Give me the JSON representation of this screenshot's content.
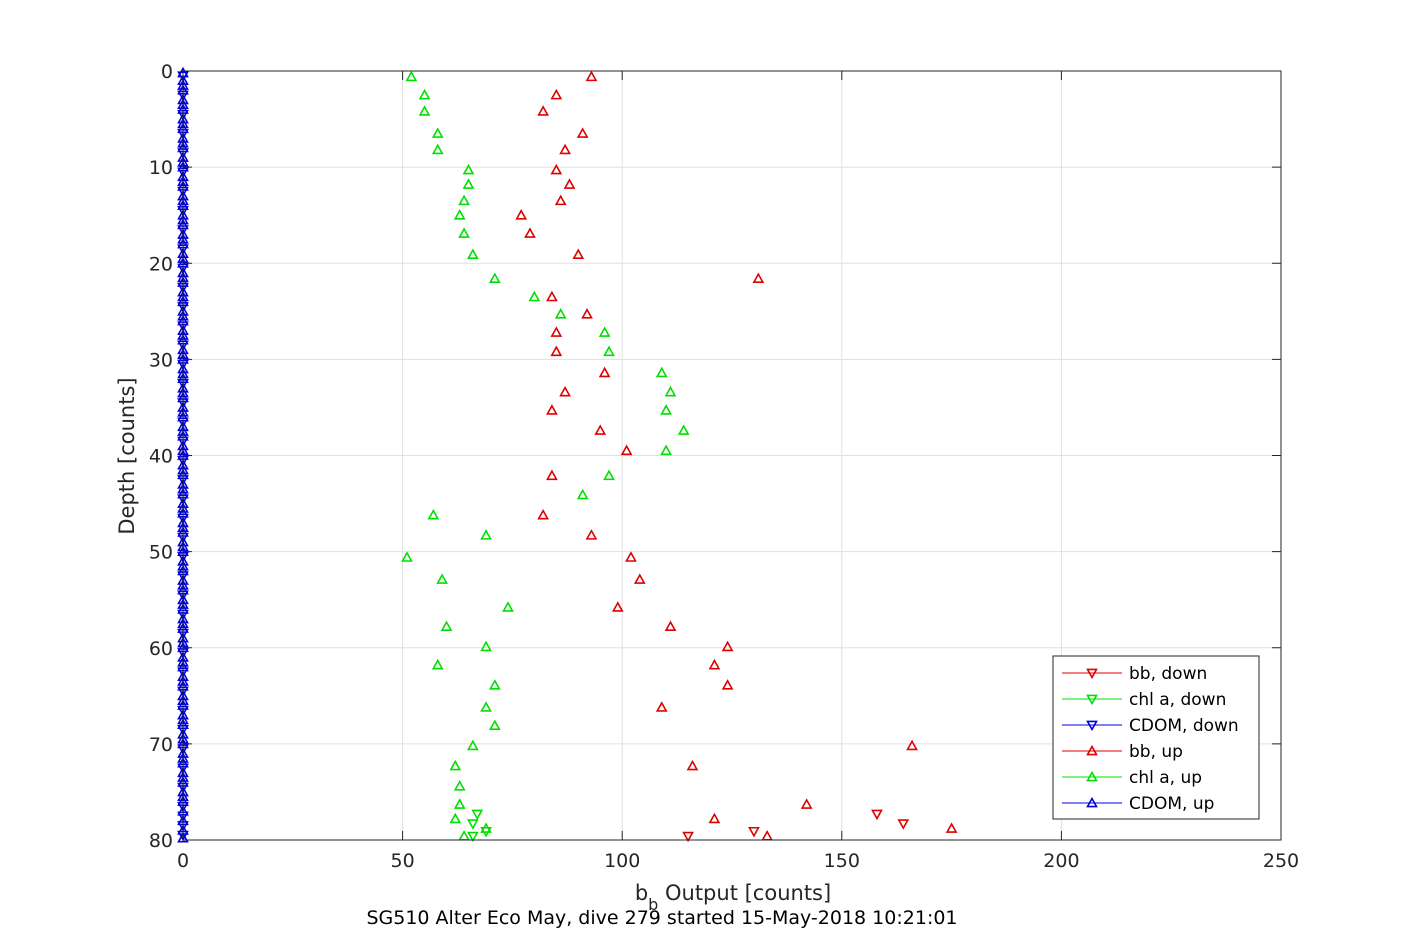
{
  "chart_data": {
    "type": "scatter",
    "title": "",
    "caption": "SG510 Alter Eco May, dive 279 started 15-May-2018 10:21:01",
    "xlabel": {
      "main": "b",
      "sub": "b",
      "rest": " Output [counts]"
    },
    "ylabel": "Depth [counts]",
    "xlim": [
      0,
      250
    ],
    "ylim": [
      0,
      80
    ],
    "y_reversed": true,
    "grid": true,
    "x_ticks": [
      0,
      50,
      100,
      150,
      200,
      250
    ],
    "y_ticks": [
      0,
      10,
      20,
      30,
      40,
      50,
      60,
      70,
      80
    ],
    "legend_position": "bottom-right",
    "series": [
      {
        "name": "bb, down",
        "color": "#e00000",
        "marker": "triangle-down",
        "points": [
          [
            158,
            77.3
          ],
          [
            164,
            78.3
          ],
          [
            130,
            79.1
          ],
          [
            115,
            79.6
          ]
        ]
      },
      {
        "name": "chl a, down",
        "color": "#00e000",
        "marker": "triangle-down",
        "points": [
          [
            67,
            77.3
          ],
          [
            66,
            78.3
          ],
          [
            69,
            79.1
          ],
          [
            66,
            79.6
          ]
        ]
      },
      {
        "name": "CDOM, down",
        "color": "#0000e0",
        "marker": "triangle-down",
        "points": [
          [
            0,
            0.5
          ],
          [
            0,
            2.5
          ],
          [
            0,
            4.5
          ],
          [
            0,
            6.5
          ],
          [
            0,
            8.5
          ],
          [
            0,
            10.5
          ],
          [
            0,
            12.5
          ],
          [
            0,
            14.5
          ],
          [
            0,
            16.5
          ],
          [
            0,
            18.5
          ],
          [
            0,
            20.5
          ],
          [
            0,
            22.5
          ],
          [
            0,
            24.5
          ],
          [
            0,
            26.5
          ],
          [
            0,
            28.5
          ],
          [
            0,
            30.5
          ],
          [
            0,
            32.5
          ],
          [
            0,
            34.5
          ],
          [
            0,
            36.5
          ],
          [
            0,
            38.5
          ],
          [
            0,
            40.5
          ],
          [
            0,
            42.5
          ],
          [
            0,
            44.5
          ],
          [
            0,
            46.5
          ],
          [
            0,
            48.5
          ],
          [
            0,
            50.5
          ],
          [
            0,
            52.5
          ],
          [
            0,
            54.5
          ],
          [
            0,
            56.5
          ],
          [
            0,
            58.5
          ],
          [
            0,
            60.5
          ],
          [
            0,
            62.5
          ],
          [
            0,
            64.5
          ],
          [
            0,
            66.5
          ],
          [
            0,
            68.5
          ],
          [
            0,
            70.5
          ],
          [
            0,
            72.5
          ],
          [
            0,
            74.5
          ],
          [
            0,
            76.5
          ],
          [
            0,
            77.5
          ],
          [
            0,
            78.5
          ],
          [
            0,
            79.5
          ]
        ]
      },
      {
        "name": "bb, up",
        "color": "#e00000",
        "marker": "triangle-up",
        "points": [
          [
            93,
            0.6
          ],
          [
            85,
            2.5
          ],
          [
            82,
            4.2
          ],
          [
            91,
            6.5
          ],
          [
            87,
            8.2
          ],
          [
            85,
            10.3
          ],
          [
            88,
            11.8
          ],
          [
            86,
            13.5
          ],
          [
            77,
            15.0
          ],
          [
            79,
            16.9
          ],
          [
            90,
            19.1
          ],
          [
            131,
            21.6
          ],
          [
            84,
            23.5
          ],
          [
            92,
            25.3
          ],
          [
            85,
            27.2
          ],
          [
            85,
            29.2
          ],
          [
            96,
            31.4
          ],
          [
            87,
            33.4
          ],
          [
            84,
            35.3
          ],
          [
            95,
            37.4
          ],
          [
            101,
            39.5
          ],
          [
            84,
            42.1
          ],
          [
            82,
            46.2
          ],
          [
            93,
            48.3
          ],
          [
            102,
            50.6
          ],
          [
            104,
            52.9
          ],
          [
            99,
            55.8
          ],
          [
            111,
            57.8
          ],
          [
            124,
            59.9
          ],
          [
            121,
            61.8
          ],
          [
            124,
            63.9
          ],
          [
            109,
            66.2
          ],
          [
            166,
            70.2
          ],
          [
            116,
            72.3
          ],
          [
            142,
            76.3
          ],
          [
            121,
            77.8
          ],
          [
            175,
            78.8
          ],
          [
            133,
            79.6
          ]
        ]
      },
      {
        "name": "chl a, up",
        "color": "#00e000",
        "marker": "triangle-up",
        "points": [
          [
            52,
            0.6
          ],
          [
            55,
            2.5
          ],
          [
            55,
            4.2
          ],
          [
            58,
            6.5
          ],
          [
            58,
            8.2
          ],
          [
            65,
            10.3
          ],
          [
            65,
            11.8
          ],
          [
            64,
            13.5
          ],
          [
            63,
            15.0
          ],
          [
            64,
            16.9
          ],
          [
            66,
            19.1
          ],
          [
            71,
            21.6
          ],
          [
            80,
            23.5
          ],
          [
            86,
            25.3
          ],
          [
            96,
            27.2
          ],
          [
            97,
            29.2
          ],
          [
            109,
            31.4
          ],
          [
            111,
            33.4
          ],
          [
            110,
            35.3
          ],
          [
            114,
            37.4
          ],
          [
            110,
            39.5
          ],
          [
            97,
            42.1
          ],
          [
            91,
            44.1
          ],
          [
            57,
            46.2
          ],
          [
            69,
            48.3
          ],
          [
            51,
            50.6
          ],
          [
            59,
            52.9
          ],
          [
            74,
            55.8
          ],
          [
            60,
            57.8
          ],
          [
            69,
            59.9
          ],
          [
            58,
            61.8
          ],
          [
            71,
            63.9
          ],
          [
            69,
            66.2
          ],
          [
            71,
            68.1
          ],
          [
            66,
            70.2
          ],
          [
            62,
            72.3
          ],
          [
            63,
            74.4
          ],
          [
            63,
            76.3
          ],
          [
            62,
            77.8
          ],
          [
            69,
            78.8
          ],
          [
            64,
            79.6
          ]
        ]
      },
      {
        "name": "CDOM, up",
        "color": "#0000e0",
        "marker": "triangle-up",
        "points": [
          [
            0,
            0.2
          ],
          [
            0,
            1.0
          ],
          [
            0,
            1.5
          ],
          [
            0,
            2.0
          ],
          [
            0,
            3.0
          ],
          [
            0,
            3.5
          ],
          [
            0,
            4.0
          ],
          [
            0,
            5.0
          ],
          [
            0,
            5.5
          ],
          [
            0,
            6.0
          ],
          [
            0,
            7.0
          ],
          [
            0,
            7.5
          ],
          [
            0,
            8.0
          ],
          [
            0,
            9.0
          ],
          [
            0,
            9.5
          ],
          [
            0,
            10.0
          ],
          [
            0,
            11.0
          ],
          [
            0,
            11.5
          ],
          [
            0,
            12.0
          ],
          [
            0,
            13.0
          ],
          [
            0,
            13.5
          ],
          [
            0,
            14.0
          ],
          [
            0,
            15.0
          ],
          [
            0,
            15.5
          ],
          [
            0,
            16.0
          ],
          [
            0,
            17.0
          ],
          [
            0,
            17.5
          ],
          [
            0,
            18.0
          ],
          [
            0,
            19.0
          ],
          [
            0,
            19.5
          ],
          [
            0,
            20.0
          ],
          [
            0,
            21.0
          ],
          [
            0,
            21.5
          ],
          [
            0,
            22.0
          ],
          [
            0,
            23.0
          ],
          [
            0,
            23.5
          ],
          [
            0,
            24.0
          ],
          [
            0,
            25.0
          ],
          [
            0,
            25.5
          ],
          [
            0,
            26.0
          ],
          [
            0,
            27.0
          ],
          [
            0,
            27.5
          ],
          [
            0,
            28.0
          ],
          [
            0,
            29.0
          ],
          [
            0,
            29.5
          ],
          [
            0,
            30.0
          ],
          [
            0,
            31.0
          ],
          [
            0,
            31.5
          ],
          [
            0,
            32.0
          ],
          [
            0,
            33.0
          ],
          [
            0,
            33.5
          ],
          [
            0,
            34.0
          ],
          [
            0,
            35.0
          ],
          [
            0,
            35.5
          ],
          [
            0,
            36.0
          ],
          [
            0,
            37.0
          ],
          [
            0,
            37.5
          ],
          [
            0,
            38.0
          ],
          [
            0,
            39.0
          ],
          [
            0,
            39.5
          ],
          [
            0,
            40.0
          ],
          [
            0,
            41.0
          ],
          [
            0,
            41.5
          ],
          [
            0,
            42.0
          ],
          [
            0,
            43.0
          ],
          [
            0,
            43.5
          ],
          [
            0,
            44.0
          ],
          [
            0,
            45.0
          ],
          [
            0,
            45.5
          ],
          [
            0,
            46.0
          ],
          [
            0,
            47.0
          ],
          [
            0,
            47.5
          ],
          [
            0,
            48.0
          ],
          [
            0,
            49.0
          ],
          [
            0,
            49.5
          ],
          [
            0,
            50.0
          ],
          [
            0,
            51.0
          ],
          [
            0,
            51.5
          ],
          [
            0,
            52.0
          ],
          [
            0,
            53.0
          ],
          [
            0,
            53.5
          ],
          [
            0,
            54.0
          ],
          [
            0,
            55.0
          ],
          [
            0,
            55.5
          ],
          [
            0,
            56.0
          ],
          [
            0,
            57.0
          ],
          [
            0,
            57.5
          ],
          [
            0,
            58.0
          ],
          [
            0,
            59.0
          ],
          [
            0,
            59.5
          ],
          [
            0,
            60.0
          ],
          [
            0,
            61.0
          ],
          [
            0,
            61.5
          ],
          [
            0,
            62.0
          ],
          [
            0,
            63.0
          ],
          [
            0,
            63.5
          ],
          [
            0,
            64.0
          ],
          [
            0,
            65.0
          ],
          [
            0,
            65.5
          ],
          [
            0,
            66.0
          ],
          [
            0,
            67.0
          ],
          [
            0,
            67.5
          ],
          [
            0,
            68.0
          ],
          [
            0,
            69.0
          ],
          [
            0,
            69.5
          ],
          [
            0,
            70.0
          ],
          [
            0,
            71.0
          ],
          [
            0,
            71.5
          ],
          [
            0,
            72.0
          ],
          [
            0,
            73.0
          ],
          [
            0,
            73.5
          ],
          [
            0,
            74.0
          ],
          [
            0,
            75.0
          ],
          [
            0,
            75.5
          ],
          [
            0,
            76.0
          ],
          [
            0,
            77.0
          ],
          [
            0,
            78.0
          ],
          [
            0,
            79.0
          ],
          [
            0,
            79.8
          ]
        ]
      }
    ]
  }
}
